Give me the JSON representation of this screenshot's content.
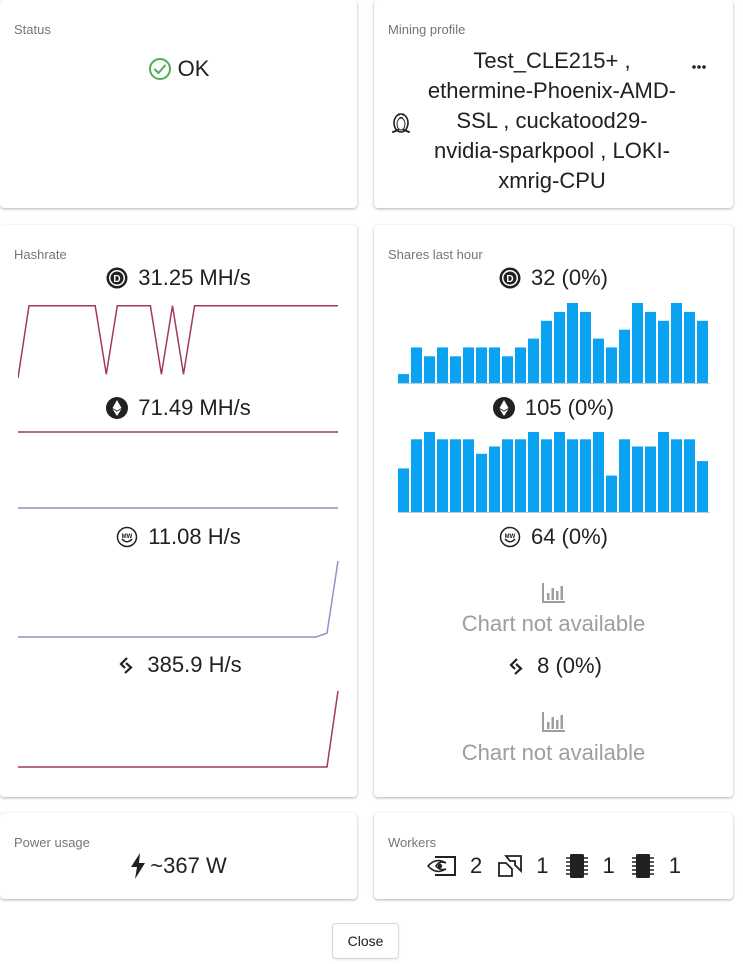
{
  "status": {
    "title": "Status",
    "value": "OK",
    "icon": "check-circle-icon",
    "color": "#4caf50"
  },
  "profile": {
    "title": "Mining profile",
    "lines": [
      "Test_CLE215+ ,",
      "ethermine-Phoenix-AMD-",
      "SSL ,  cuckatood29-",
      "nvidia-sparkpool ,  LOKI-",
      "xmrig-CPU"
    ],
    "more": "•••",
    "os_icon": "linux-tux-icon"
  },
  "hashrate": {
    "title": "Hashrate",
    "items": [
      {
        "coin_icon": "decred-icon",
        "value": "31.25 MH/s"
      },
      {
        "coin_icon": "ethereum-icon",
        "value": "71.49 MH/s"
      },
      {
        "coin_icon": "grin-icon",
        "value": "11.08 H/s"
      },
      {
        "coin_icon": "loki-icon",
        "value": "385.9 H/s"
      }
    ]
  },
  "shares": {
    "title": "Shares last hour",
    "items": [
      {
        "coin_icon": "decred-icon",
        "value": "32 (0%)"
      },
      {
        "coin_icon": "ethereum-icon",
        "value": "105 (0%)"
      },
      {
        "coin_icon": "grin-icon",
        "value": "64 (0%)",
        "not_available": "Chart not available"
      },
      {
        "coin_icon": "loki-icon",
        "value": "8 (0%)",
        "not_available": "Chart not available"
      }
    ]
  },
  "power": {
    "title": "Power usage",
    "value": "~367 W",
    "icon": "lightning-icon"
  },
  "workers": {
    "title": "Workers",
    "items": [
      {
        "icon": "nvidia-icon",
        "count": "2"
      },
      {
        "icon": "amd-icon",
        "count": "1"
      },
      {
        "icon": "cpu-chip-icon",
        "count": "1"
      },
      {
        "icon": "cpu-chip-icon",
        "count": "1"
      }
    ]
  },
  "close_label": "Close",
  "chart_data": [
    {
      "type": "line",
      "series": [
        {
          "values": [
            0,
            0.95,
            0.95,
            0.95,
            0.95,
            0.95,
            0.95,
            0.95,
            0.05,
            0.95,
            0.95,
            0.95,
            0.95,
            0.05,
            0.95,
            0.05,
            0.95,
            0.95,
            0.95,
            0.95,
            0.95,
            0.95,
            0.95,
            0.95,
            0.95,
            0.95,
            0.95,
            0.95,
            0.95,
            0.95
          ]
        }
      ],
      "color": "#a23864"
    },
    {
      "type": "line",
      "series": [
        {
          "values": [
            1,
            1,
            1,
            1,
            1,
            1,
            1,
            1,
            1,
            1
          ]
        }
      ],
      "color": "#a23864"
    },
    {
      "type": "line",
      "series": [
        {
          "values": [
            0,
            0,
            0,
            0,
            0,
            0,
            0,
            0,
            0,
            0
          ]
        }
      ],
      "color": "#8d92c8"
    },
    {
      "type": "line",
      "series": [
        {
          "values": [
            0,
            0,
            0,
            0,
            0,
            0,
            0,
            0,
            0,
            0,
            0,
            0,
            0,
            0,
            0,
            0,
            0,
            0,
            0,
            0,
            0,
            0,
            0,
            0,
            0,
            0,
            0,
            0,
            0.05,
            1
          ]
        }
      ],
      "color": "#8d92c8"
    },
    {
      "type": "line",
      "series": [
        {
          "values": [
            0,
            0,
            0,
            0,
            0,
            0,
            0,
            0,
            0,
            0,
            0,
            0,
            0,
            0,
            0,
            0,
            0,
            0,
            0,
            0,
            0,
            0,
            0,
            0,
            0,
            0,
            0,
            0,
            0,
            1
          ]
        }
      ],
      "color": "#a23864"
    },
    {
      "type": "bar",
      "values": [
        1,
        4,
        3,
        4,
        3,
        4,
        4,
        4,
        3,
        4,
        5,
        7,
        8,
        9,
        8,
        5,
        4,
        6,
        9,
        8,
        7,
        9,
        8,
        7
      ],
      "color": "#0aa3f2"
    },
    {
      "type": "bar",
      "values": [
        6,
        10,
        11,
        10,
        10,
        10,
        8,
        9,
        10,
        10,
        11,
        10,
        11,
        10,
        10,
        11,
        5,
        10,
        9,
        9,
        11,
        10,
        10,
        7
      ],
      "color": "#0aa3f2"
    }
  ]
}
